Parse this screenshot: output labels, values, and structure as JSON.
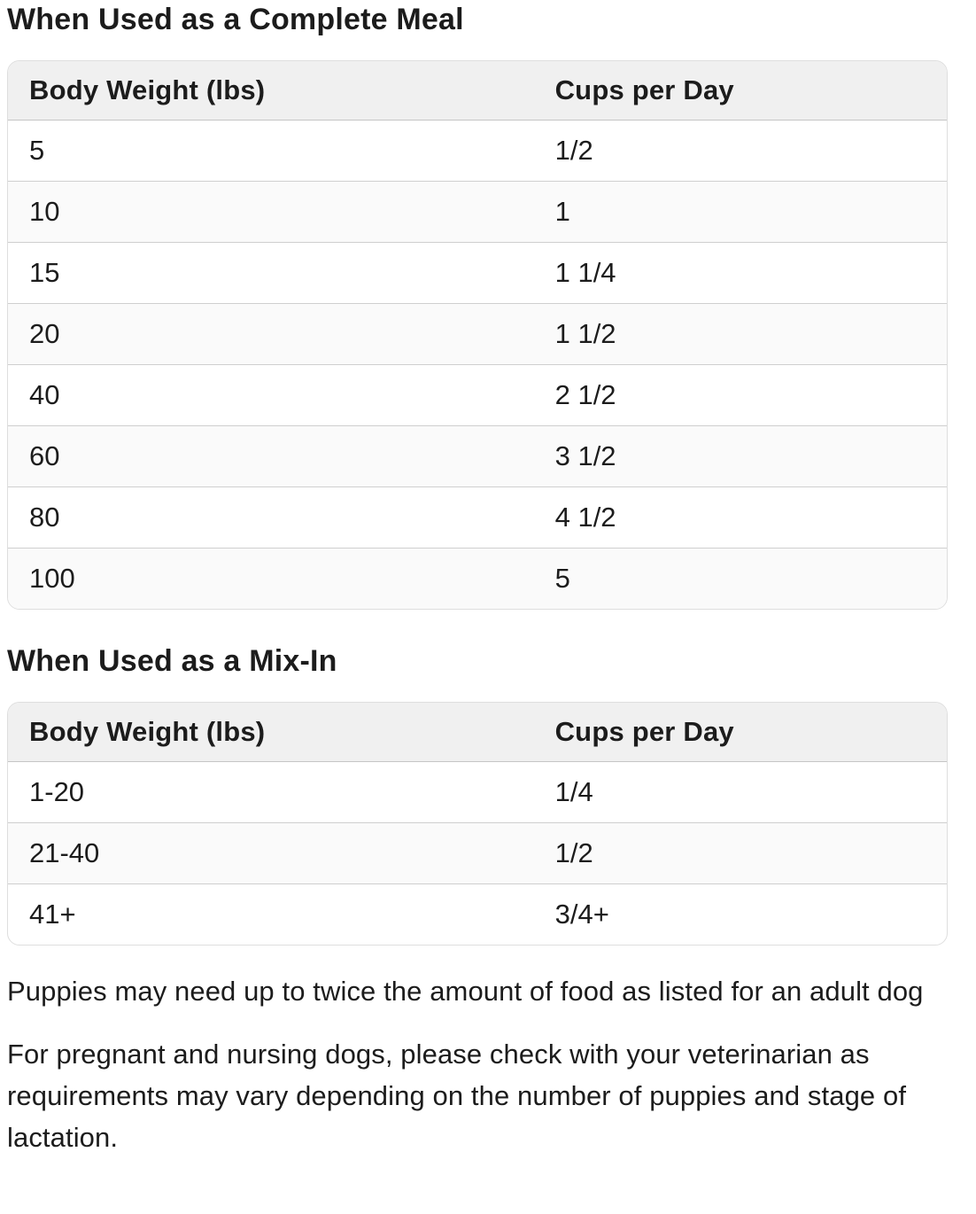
{
  "colors": {
    "text": "#1c1c1c",
    "table_header_bg": "#f0f0f0",
    "row_alt_bg": "#fafafa",
    "row_border": "#cfcfcf",
    "table_border": "#dedede"
  },
  "sections": [
    {
      "title": "When Used as a Complete Meal",
      "table": {
        "headers": [
          "Body Weight (lbs)",
          "Cups per Day"
        ],
        "rows": [
          [
            "5",
            "1/2"
          ],
          [
            "10",
            "1"
          ],
          [
            "15",
            "1 1/4"
          ],
          [
            "20",
            "1 1/2"
          ],
          [
            "40",
            "2 1/2"
          ],
          [
            "60",
            "3 1/2"
          ],
          [
            "80",
            "4 1/2"
          ],
          [
            "100",
            "5"
          ]
        ]
      }
    },
    {
      "title": "When Used as a Mix-In",
      "table": {
        "headers": [
          "Body Weight (lbs)",
          "Cups per Day"
        ],
        "rows": [
          [
            "1-20",
            "1/4"
          ],
          [
            "21-40",
            "1/2"
          ],
          [
            "41+",
            "3/4+"
          ]
        ]
      }
    }
  ],
  "notes": [
    "Puppies may need up to twice the amount of food as listed for an adult dog",
    "For pregnant and nursing dogs, please check with your veterinarian as requirements may vary depending on the number of puppies and stage of lactation."
  ]
}
